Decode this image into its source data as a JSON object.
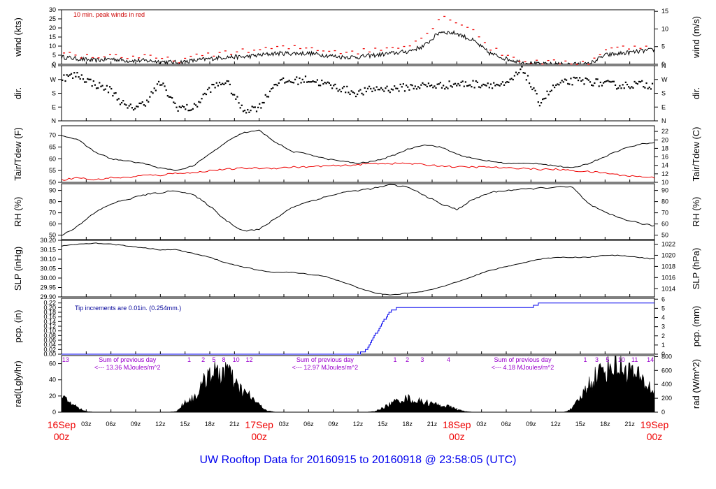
{
  "page_title": "UW Rooftop Data for 20160915  to  20160918 @ 23:58:05  (UTC)",
  "colors": {
    "axis": "#000000",
    "wind_peak": "#ee0000",
    "dewpoint": "#ee0000",
    "precip": "#0000ee",
    "note_red": "#cc0000",
    "note_blue": "#000099",
    "note_purple": "#9900cc",
    "date_label": "#ee0000",
    "title": "#0000ee"
  },
  "x_axis": {
    "hour_labels": [
      "03z",
      "06z",
      "09z",
      "12z",
      "15z",
      "18z",
      "21z",
      "03z",
      "06z",
      "09z",
      "12z",
      "15z",
      "18z",
      "21z",
      "03z",
      "06z",
      "09z",
      "12z",
      "15z",
      "18z",
      "21z"
    ],
    "hour_positions": [
      3,
      6,
      9,
      12,
      15,
      18,
      21,
      27,
      30,
      33,
      36,
      39,
      42,
      45,
      51,
      54,
      57,
      60,
      63,
      66,
      69
    ],
    "date_labels": [
      {
        "date": "16Sep",
        "time": "00z",
        "hour": 0
      },
      {
        "date": "17Sep",
        "time": "00z",
        "hour": 24
      },
      {
        "date": "18Sep",
        "time": "00z",
        "hour": 48
      },
      {
        "date": "19Sep",
        "time": "00z",
        "hour": 72
      }
    ],
    "range_hours": [
      0,
      72
    ]
  },
  "chart_data": [
    {
      "type": "line",
      "title": "",
      "ylabel": "wind (kts)",
      "ylabel_right": "wind (m/s)",
      "ylim": [
        0,
        30
      ],
      "yticks": [
        0,
        5,
        10,
        15,
        20,
        25,
        30
      ],
      "yticks_right": [
        0,
        5,
        10,
        15
      ],
      "right_to_left": 1.94384,
      "annotation": "10 min. peak winds in red",
      "series": [
        {
          "name": "",
          "x": [
            0,
            2,
            4,
            6,
            8,
            10,
            12,
            14,
            16,
            18,
            20,
            22,
            24,
            26,
            28,
            30,
            32,
            34,
            36,
            38,
            40,
            42,
            44,
            46,
            48,
            50,
            52,
            54,
            56,
            58,
            60,
            62,
            64,
            66,
            68,
            70,
            72
          ],
          "y": [
            4,
            3,
            2,
            3,
            2,
            2,
            1.5,
            1,
            2,
            3,
            4,
            4,
            5,
            6,
            6,
            6,
            5,
            4,
            4,
            5,
            6,
            7,
            10,
            18,
            17,
            13,
            6,
            3,
            1,
            0,
            0,
            0,
            0,
            5,
            6,
            7,
            8
          ]
        },
        {
          "name": "",
          "x": [
            0,
            2,
            4,
            6,
            8,
            10,
            12,
            14,
            16,
            18,
            20,
            22,
            24,
            26,
            28,
            30,
            32,
            34,
            36,
            38,
            40,
            42,
            44,
            46,
            48,
            50,
            52,
            54,
            56,
            58,
            60,
            62,
            64,
            66,
            68,
            70,
            72
          ],
          "y": [
            7,
            5,
            4,
            5,
            4,
            4,
            3,
            2,
            4,
            5,
            7,
            7,
            8,
            9,
            9,
            9,
            8,
            7,
            7,
            8,
            9,
            11,
            15,
            26,
            24,
            19,
            9,
            5,
            2,
            1,
            1,
            1,
            1,
            8,
            9,
            10,
            11
          ]
        }
      ]
    },
    {
      "type": "scatter",
      "title": "",
      "ylabel": "dir.",
      "ylabel_right": "dir.",
      "yticks": [
        0,
        90,
        180,
        270,
        360
      ],
      "ytick_labels": [
        "N",
        "E",
        "S",
        "W",
        "N"
      ],
      "series": [
        {
          "name": "",
          "x": [
            0,
            2,
            4,
            6,
            8,
            10,
            12,
            14,
            16,
            18,
            20,
            22,
            24,
            26,
            28,
            30,
            32,
            34,
            36,
            38,
            40,
            42,
            44,
            46,
            48,
            50,
            52,
            54,
            56,
            58,
            60,
            62,
            64,
            66,
            68,
            70,
            72
          ],
          "y": [
            280,
            300,
            240,
            200,
            80,
            110,
            250,
            90,
            80,
            210,
            260,
            70,
            90,
            250,
            260,
            270,
            240,
            210,
            180,
            210,
            210,
            220,
            230,
            230,
            240,
            240,
            240,
            230,
            340,
            120,
            230,
            260,
            260,
            240,
            230,
            240,
            230
          ]
        }
      ]
    },
    {
      "type": "line",
      "title": "",
      "ylabel": "Tair/Tdew (F)",
      "ylabel_right": "Tair/Tdew (C)",
      "ylim": [
        50,
        74
      ],
      "yticks": [
        50,
        55,
        60,
        65,
        70
      ],
      "yticks_right": [
        10,
        12,
        14,
        16,
        18,
        20,
        22
      ],
      "right_is_celsius": true,
      "series": [
        {
          "name": "",
          "x": [
            0,
            2,
            4,
            6,
            8,
            10,
            12,
            14,
            16,
            18,
            20,
            22,
            24,
            26,
            28,
            30,
            32,
            34,
            36,
            38,
            40,
            42,
            44,
            46,
            48,
            50,
            52,
            54,
            56,
            58,
            60,
            62,
            64,
            66,
            68,
            70,
            72
          ],
          "y": [
            70,
            68,
            63,
            60,
            59,
            58,
            56,
            55,
            57,
            62,
            67,
            71,
            72,
            67,
            63,
            62,
            60,
            59,
            58,
            59,
            61,
            64,
            66,
            65,
            62,
            60,
            59,
            58,
            58,
            58,
            57,
            56,
            58,
            61,
            64,
            66,
            67
          ]
        },
        {
          "name": "",
          "x": [
            0,
            2,
            4,
            6,
            8,
            10,
            12,
            14,
            16,
            18,
            20,
            22,
            24,
            26,
            28,
            30,
            32,
            34,
            36,
            38,
            40,
            42,
            44,
            46,
            48,
            50,
            52,
            54,
            56,
            58,
            60,
            62,
            64,
            66,
            68,
            70,
            72
          ],
          "y": [
            51,
            52,
            51,
            52,
            52,
            53,
            53,
            54,
            54,
            55,
            55.5,
            56,
            56,
            56,
            56.5,
            56.5,
            57,
            57,
            57.5,
            58,
            58,
            58,
            57.5,
            57,
            56.5,
            56.5,
            56.5,
            56,
            56,
            55.5,
            55.5,
            55,
            54.5,
            54,
            53,
            52.5,
            52
          ]
        }
      ]
    },
    {
      "type": "line",
      "title": "",
      "ylabel": "RH (%)",
      "ylabel_right": "RH (%)",
      "ylim": [
        46,
        96
      ],
      "yticks": [
        50,
        60,
        70,
        80,
        90
      ],
      "yticks_right": [
        50,
        60,
        70,
        80,
        90
      ],
      "series": [
        {
          "name": "",
          "x": [
            0,
            2,
            4,
            6,
            8,
            10,
            12,
            14,
            16,
            18,
            20,
            22,
            24,
            26,
            28,
            30,
            32,
            34,
            36,
            38,
            40,
            42,
            44,
            46,
            48,
            50,
            52,
            54,
            56,
            58,
            60,
            62,
            64,
            66,
            68,
            70,
            72
          ],
          "y": [
            50,
            58,
            70,
            78,
            82,
            86,
            88,
            90,
            86,
            76,
            63,
            54,
            55,
            65,
            75,
            80,
            84,
            88,
            90,
            92,
            95,
            93,
            86,
            78,
            73,
            82,
            88,
            90,
            91,
            92,
            93,
            93,
            78,
            70,
            65,
            61,
            58
          ]
        }
      ]
    },
    {
      "type": "line",
      "title": "",
      "ylabel": "SLP (inHg)",
      "ylabel_right": "SLP (hPa)",
      "ylim": [
        29.9,
        30.2
      ],
      "yticks": [
        29.9,
        29.95,
        30.0,
        30.05,
        30.1,
        30.15,
        30.2
      ],
      "ytick_labels": [
        "29.90",
        "29.95",
        "30.00",
        "30.05",
        "30.10",
        "30.15",
        "30.20"
      ],
      "yticks_right": [
        1014,
        1016,
        1018,
        1020,
        1022
      ],
      "right_is_hpa": true,
      "series": [
        {
          "name": "",
          "x": [
            0,
            2,
            4,
            6,
            8,
            10,
            12,
            14,
            16,
            18,
            20,
            22,
            24,
            26,
            28,
            30,
            32,
            34,
            36,
            38,
            40,
            42,
            44,
            46,
            48,
            50,
            52,
            54,
            56,
            58,
            60,
            62,
            64,
            66,
            68,
            70,
            72
          ],
          "y": [
            30.17,
            30.18,
            30.185,
            30.18,
            30.17,
            30.16,
            30.15,
            30.15,
            30.13,
            30.11,
            30.08,
            30.06,
            30.04,
            30.03,
            30.03,
            30.02,
            30.01,
            29.98,
            29.95,
            29.92,
            29.91,
            29.92,
            29.93,
            29.95,
            29.98,
            30.01,
            30.04,
            30.06,
            30.08,
            30.1,
            30.11,
            30.11,
            30.11,
            30.12,
            30.12,
            30.11,
            30.1
          ]
        }
      ]
    },
    {
      "type": "line",
      "title": "",
      "ylabel": "pcp. (in)",
      "ylabel_right": "pcp. (mm)",
      "ylim": [
        0,
        0.24
      ],
      "yticks": [
        0,
        0.02,
        0.04,
        0.06,
        0.08,
        0.1,
        0.12,
        0.14,
        0.16,
        0.18,
        0.2,
        0.22
      ],
      "ytick_labels": [
        "0.00",
        "0.02",
        "0.04",
        "0.06",
        "0.08",
        "0.10",
        "0.12",
        "0.14",
        "0.16",
        "0.18",
        "0.20",
        "0.22"
      ],
      "yticks_right": [
        0,
        1,
        2,
        3,
        4,
        5,
        6
      ],
      "annotation": "Tip increments are 0.01in. (0.254mm.)",
      "series": [
        {
          "name": "",
          "x": [
            0,
            36,
            37,
            38,
            39,
            40,
            41,
            42,
            43,
            44,
            45,
            46,
            47,
            48,
            49,
            50,
            51,
            52,
            53,
            54,
            55,
            56,
            57,
            58,
            59,
            60,
            61,
            62,
            63,
            64,
            65,
            66,
            67,
            68,
            69,
            70,
            71,
            72
          ],
          "y": [
            0,
            0,
            0.02,
            0.08,
            0.14,
            0.19,
            0.2,
            0.2,
            0.2,
            0.2,
            0.2,
            0.2,
            0.2,
            0.2,
            0.2,
            0.2,
            0.2,
            0.2,
            0.2,
            0.2,
            0.2,
            0.2,
            0.2,
            0.22,
            0.22,
            0.22,
            0.22,
            0.22,
            0.22,
            0.22,
            0.22,
            0.22,
            0.22,
            0.22,
            0.22,
            0.22,
            0.22,
            0.22
          ]
        }
      ]
    },
    {
      "type": "area",
      "title": "",
      "ylabel": "rad(Lgly/hr)",
      "ylabel_right": "rad (W/m^2)",
      "ylim": [
        0,
        70
      ],
      "yticks": [
        0,
        20,
        40,
        60
      ],
      "yticks_right": [
        0,
        200,
        400,
        600,
        800
      ],
      "right_to_left": 11.63,
      "annotations": [
        {
          "text": "Sum of previous day",
          "hour": 8
        },
        {
          "text": "<--- 13.36 MJoules/m^2",
          "hour": 8
        },
        {
          "text": "Sum of previous day",
          "hour": 32
        },
        {
          "text": "<--- 12.97 MJoules/m^2",
          "hour": 32
        },
        {
          "text": "Sum of previous day",
          "hour": 56
        },
        {
          "text": "<--- 4.18 MJoules/m^2",
          "hour": 56
        }
      ],
      "hour_marks": [
        {
          "text": "13",
          "hour": 0.5
        },
        {
          "text": "1",
          "hour": 15.5
        },
        {
          "text": "2",
          "hour": 17.2
        },
        {
          "text": "5",
          "hour": 18.5
        },
        {
          "text": "8",
          "hour": 19.7
        },
        {
          "text": "10",
          "hour": 21.2
        },
        {
          "text": "12",
          "hour": 22.8
        },
        {
          "text": "1",
          "hour": 40.5
        },
        {
          "text": "2",
          "hour": 42
        },
        {
          "text": "3",
          "hour": 43.8
        },
        {
          "text": "4",
          "hour": 47
        },
        {
          "text": "1",
          "hour": 63.6
        },
        {
          "text": "3",
          "hour": 65
        },
        {
          "text": "5",
          "hour": 66.3
        },
        {
          "text": "10",
          "hour": 68
        },
        {
          "text": "11",
          "hour": 69.6
        },
        {
          "text": "14",
          "hour": 71.5
        }
      ],
      "series": [
        {
          "name": "",
          "x": [
            0,
            1,
            2,
            3,
            4,
            12,
            13,
            14,
            15,
            16,
            17,
            18,
            19,
            20,
            21,
            22,
            23,
            24,
            25,
            26,
            36,
            37,
            38,
            39,
            40,
            41,
            42,
            43,
            44,
            45,
            46,
            47,
            48,
            49,
            50,
            60,
            61,
            62,
            63,
            64,
            65,
            66,
            67,
            68,
            69,
            70,
            71,
            72
          ],
          "y": [
            20,
            15,
            6,
            1,
            0,
            0,
            0,
            1,
            15,
            20,
            35,
            62,
            52,
            65,
            40,
            30,
            22,
            10,
            2,
            0,
            0,
            0,
            1,
            6,
            12,
            18,
            20,
            16,
            15,
            12,
            10,
            8,
            4,
            1,
            0,
            0,
            0,
            5,
            20,
            40,
            55,
            62,
            70,
            65,
            60,
            50,
            40,
            30
          ]
        }
      ]
    }
  ]
}
